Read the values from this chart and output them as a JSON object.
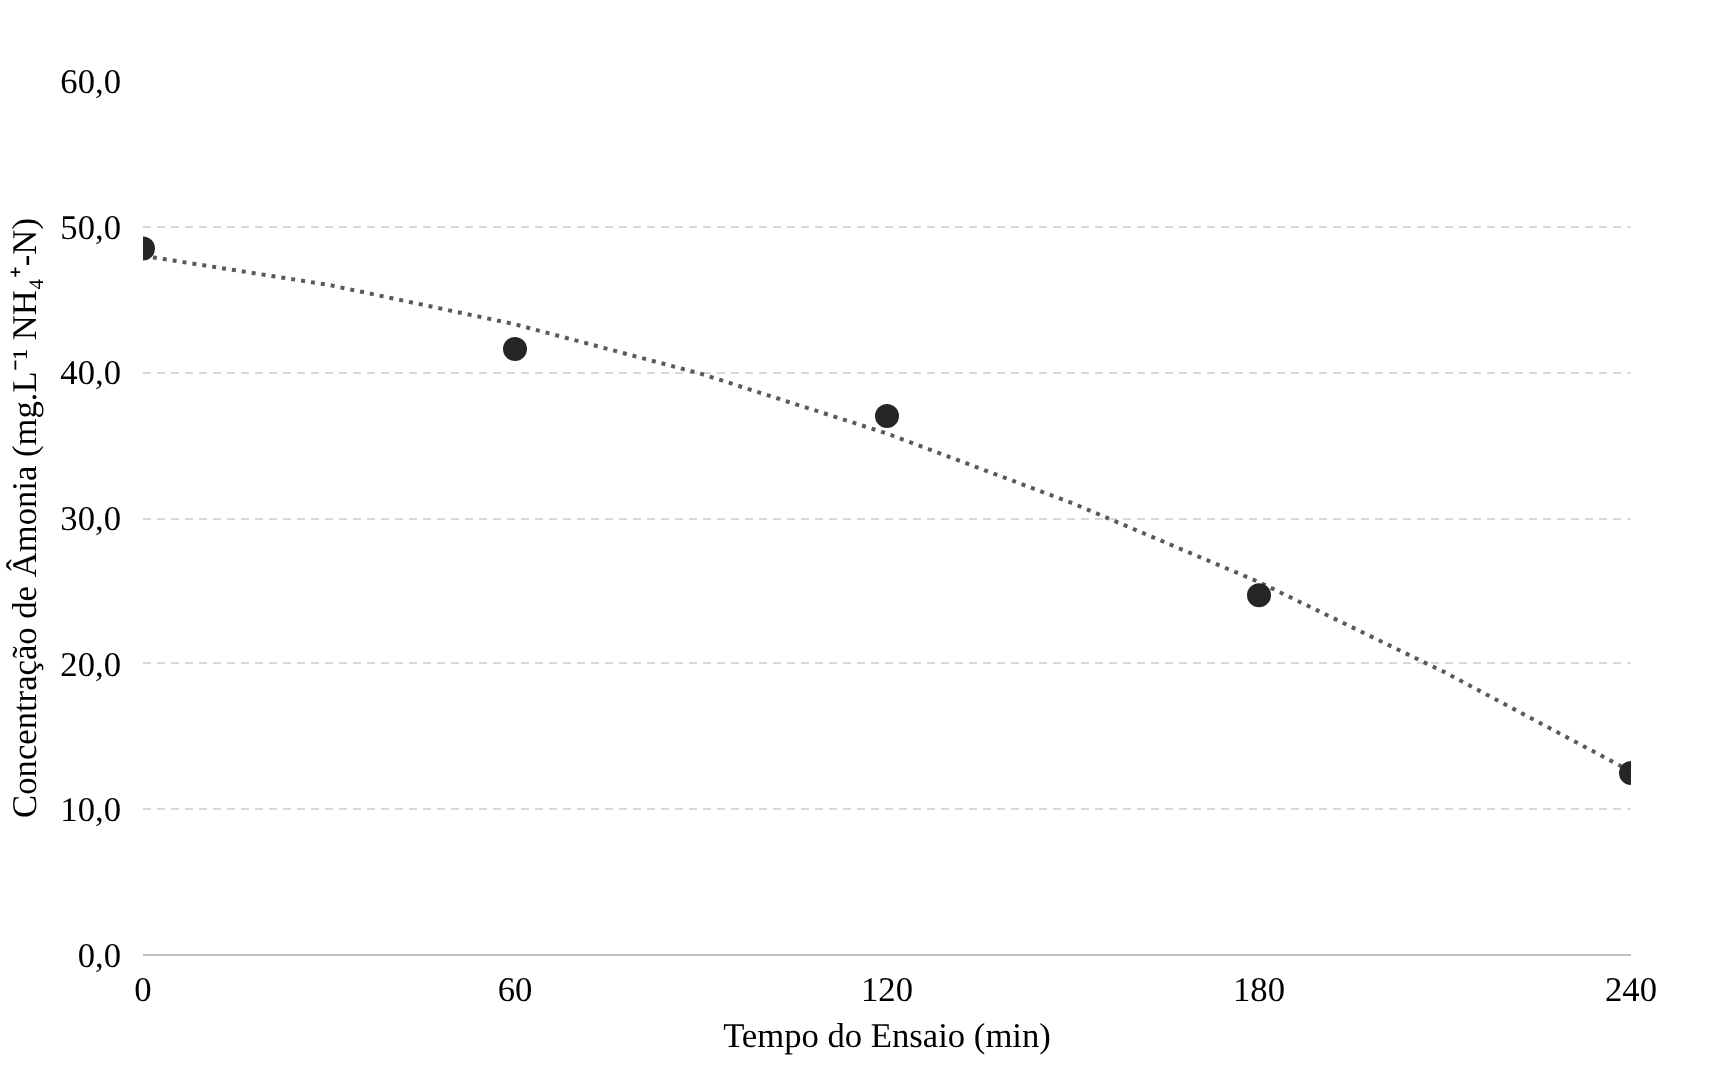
{
  "chart_data": {
    "type": "scatter",
    "xlabel": "Tempo do Ensaio (min)",
    "ylabel": "Concentração de Âmonia (mg.L⁻¹ NH₄⁺-N)",
    "x": [
      0,
      60,
      120,
      180,
      240
    ],
    "series": [
      {
        "color": "#262626",
        "marker": "circle",
        "values": [
          48.5,
          41.6,
          37.0,
          24.7,
          12.5
        ]
      },
      {
        "type": "line",
        "color": "#595959",
        "line_style": "dotted",
        "x": [
          0,
          30,
          60,
          90,
          120,
          150,
          180,
          210,
          240
        ],
        "values": [
          48.0,
          46.0,
          43.3,
          39.9,
          35.8,
          31.0,
          25.6,
          19.4,
          12.6
        ]
      }
    ],
    "xlim": [
      0,
      240
    ],
    "xticks": [
      0,
      60,
      120,
      180,
      240
    ],
    "ylim": [
      0,
      60
    ],
    "yticks": [
      {
        "value": 0,
        "label": "0,0"
      },
      {
        "value": 10,
        "label": "10,0"
      },
      {
        "value": 20,
        "label": "20,0"
      },
      {
        "value": 30,
        "label": "30,0"
      },
      {
        "value": 40,
        "label": "40,0"
      },
      {
        "value": 50,
        "label": "50,0"
      },
      {
        "value": 60,
        "label": "60,0"
      }
    ],
    "grid": "y"
  }
}
